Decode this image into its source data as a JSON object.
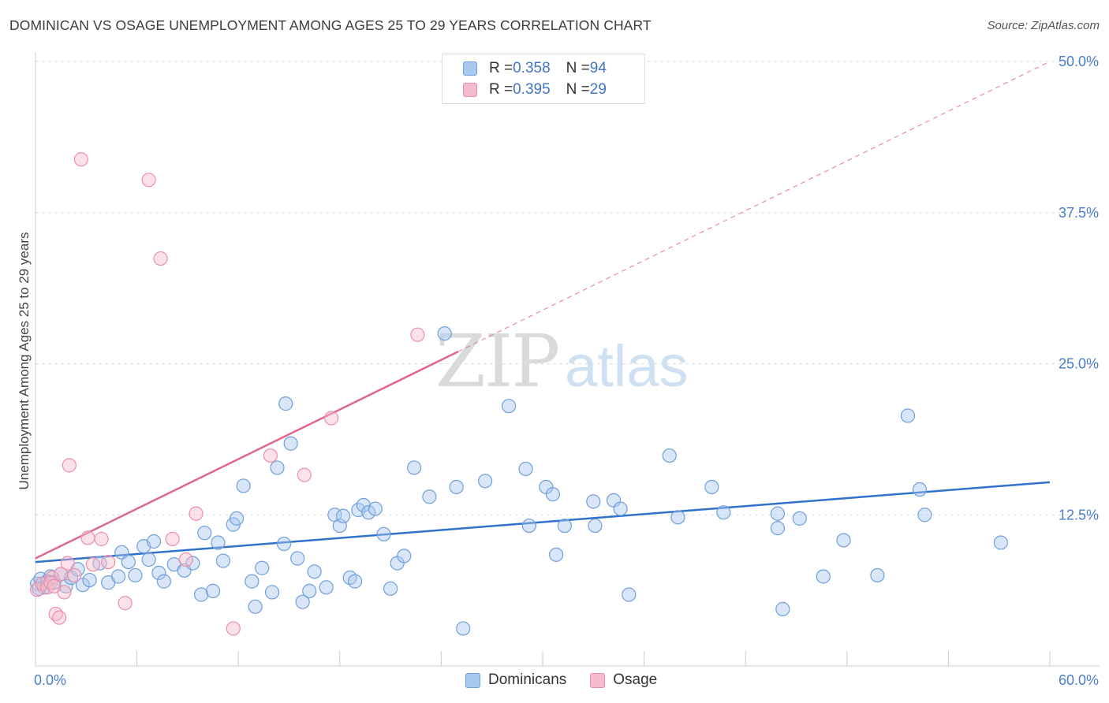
{
  "title": "DOMINICAN VS OSAGE UNEMPLOYMENT AMONG AGES 25 TO 29 YEARS CORRELATION CHART",
  "source": "Source: ZipAtlas.com",
  "watermark": {
    "zip": "ZIP",
    "atlas": "atlas"
  },
  "legend": {
    "rows": [
      {
        "r_label": "R = ",
        "r_value": "0.358",
        "n_label": "N = ",
        "n_value": "94"
      },
      {
        "r_label": "R = ",
        "r_value": "0.395",
        "n_label": "N = ",
        "n_value": "29"
      }
    ],
    "bottom": [
      "Dominicans",
      "Osage"
    ]
  },
  "colors": {
    "dominicans_fill": "#a9c8ef",
    "dominicans_stroke": "#6f9fdc",
    "dominicans_line": "#2f72c9",
    "osage_fill": "#f6bccd",
    "osage_stroke": "#ea8faa",
    "osage_line": "#e0668e",
    "grid": "#d9dde3",
    "tick_label": "#4a7ec9"
  },
  "chart_data": {
    "type": "scatter",
    "title": "DOMINICAN VS OSAGE UNEMPLOYMENT AMONG AGES 25 TO 29 YEARS CORRELATION CHART",
    "xlabel": "",
    "ylabel": "Unemployment Among Ages 25 to 29 years",
    "xlim": [
      0,
      60
    ],
    "ylim": [
      0,
      50
    ],
    "x_tick_labels": [
      "0.0%",
      "60.0%"
    ],
    "y_ticks": [
      12.5,
      25.0,
      37.5,
      50.0
    ],
    "y_tick_labels": [
      "12.5%",
      "25.0%",
      "37.5%",
      "50.0%"
    ],
    "grid": "horizontal dashed",
    "legend_position": "top-center",
    "series": [
      {
        "name": "Dominicans",
        "r": 0.358,
        "n": 94,
        "trend": {
          "x": [
            0,
            60
          ],
          "y": [
            8.6,
            15.2
          ]
        },
        "points": [
          [
            0.1,
            6.8
          ],
          [
            0.3,
            7.2
          ],
          [
            0.5,
            6.5
          ],
          [
            0.7,
            7.0
          ],
          [
            0.9,
            7.4
          ],
          [
            1.1,
            6.9
          ],
          [
            1.5,
            7.6
          ],
          [
            1.8,
            6.6
          ],
          [
            2.1,
            7.3
          ],
          [
            2.5,
            8.0
          ],
          [
            2.8,
            6.7
          ],
          [
            3.2,
            7.1
          ],
          [
            3.8,
            8.5
          ],
          [
            4.3,
            6.9
          ],
          [
            4.9,
            7.4
          ],
          [
            5.1,
            9.4
          ],
          [
            5.5,
            8.6
          ],
          [
            5.9,
            7.5
          ],
          [
            6.4,
            9.9
          ],
          [
            6.7,
            8.8
          ],
          [
            7.0,
            10.3
          ],
          [
            7.3,
            7.7
          ],
          [
            7.6,
            7.0
          ],
          [
            8.2,
            8.4
          ],
          [
            8.8,
            7.9
          ],
          [
            9.3,
            8.5
          ],
          [
            9.8,
            5.9
          ],
          [
            10.0,
            11.0
          ],
          [
            10.5,
            6.2
          ],
          [
            10.8,
            10.2
          ],
          [
            11.1,
            8.7
          ],
          [
            11.7,
            11.7
          ],
          [
            11.9,
            12.2
          ],
          [
            12.3,
            14.9
          ],
          [
            12.8,
            7.0
          ],
          [
            13.0,
            4.9
          ],
          [
            13.4,
            8.1
          ],
          [
            14.0,
            6.1
          ],
          [
            14.3,
            16.4
          ],
          [
            14.7,
            10.1
          ],
          [
            14.8,
            21.7
          ],
          [
            15.1,
            18.4
          ],
          [
            15.5,
            8.9
          ],
          [
            15.8,
            5.3
          ],
          [
            16.2,
            6.2
          ],
          [
            16.5,
            7.8
          ],
          [
            17.2,
            6.5
          ],
          [
            17.7,
            12.5
          ],
          [
            18.0,
            11.6
          ],
          [
            18.2,
            12.4
          ],
          [
            18.6,
            7.3
          ],
          [
            18.9,
            7.0
          ],
          [
            19.1,
            12.9
          ],
          [
            19.4,
            13.3
          ],
          [
            19.7,
            12.7
          ],
          [
            20.1,
            13.0
          ],
          [
            20.6,
            10.9
          ],
          [
            21.0,
            6.4
          ],
          [
            21.4,
            8.5
          ],
          [
            21.8,
            9.1
          ],
          [
            22.4,
            16.4
          ],
          [
            23.3,
            14.0
          ],
          [
            24.2,
            27.5
          ],
          [
            24.9,
            14.8
          ],
          [
            25.3,
            3.1
          ],
          [
            26.6,
            15.3
          ],
          [
            28.0,
            21.5
          ],
          [
            29.0,
            16.3
          ],
          [
            29.2,
            11.6
          ],
          [
            30.2,
            14.8
          ],
          [
            30.6,
            14.2
          ],
          [
            30.8,
            9.2
          ],
          [
            31.3,
            11.6
          ],
          [
            33.0,
            13.6
          ],
          [
            33.1,
            11.6
          ],
          [
            34.2,
            13.7
          ],
          [
            34.6,
            13.0
          ],
          [
            35.1,
            5.9
          ],
          [
            37.5,
            17.4
          ],
          [
            38.0,
            12.3
          ],
          [
            40.0,
            14.8
          ],
          [
            40.7,
            12.7
          ],
          [
            43.9,
            12.6
          ],
          [
            43.9,
            11.4
          ],
          [
            44.2,
            4.7
          ],
          [
            45.2,
            12.2
          ],
          [
            46.6,
            7.4
          ],
          [
            47.8,
            10.4
          ],
          [
            49.8,
            7.5
          ],
          [
            51.6,
            20.7
          ],
          [
            52.3,
            14.6
          ],
          [
            52.6,
            12.5
          ],
          [
            57.1,
            10.2
          ],
          [
            0.2,
            6.4
          ]
        ]
      },
      {
        "name": "Osage",
        "r": 0.395,
        "n": 29,
        "trend": {
          "x": [
            0,
            25.0
          ],
          "y": [
            8.9,
            26.0
          ]
        },
        "trend_extension": {
          "x": [
            25.0,
            60
          ],
          "y": [
            26.0,
            50.0
          ]
        },
        "points": [
          [
            0.1,
            6.3
          ],
          [
            0.4,
            6.8
          ],
          [
            0.7,
            6.5
          ],
          [
            1.0,
            7.3
          ],
          [
            1.2,
            4.3
          ],
          [
            1.4,
            4.0
          ],
          [
            1.5,
            7.6
          ],
          [
            1.7,
            6.1
          ],
          [
            1.9,
            8.5
          ],
          [
            2.0,
            16.6
          ],
          [
            2.7,
            41.9
          ],
          [
            3.1,
            10.6
          ],
          [
            3.9,
            10.5
          ],
          [
            4.3,
            8.6
          ],
          [
            5.3,
            5.2
          ],
          [
            6.7,
            40.2
          ],
          [
            7.4,
            33.7
          ],
          [
            8.1,
            10.5
          ],
          [
            8.9,
            8.8
          ],
          [
            9.5,
            12.6
          ],
          [
            11.7,
            3.1
          ],
          [
            13.9,
            17.4
          ],
          [
            15.9,
            15.8
          ],
          [
            17.5,
            20.5
          ],
          [
            22.6,
            27.4
          ],
          [
            0.9,
            6.9
          ],
          [
            2.3,
            7.5
          ],
          [
            1.1,
            6.6
          ],
          [
            3.4,
            8.4
          ]
        ]
      }
    ]
  }
}
